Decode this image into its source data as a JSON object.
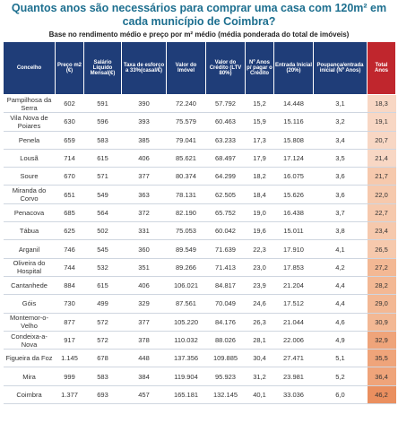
{
  "header": {
    "title": "Quantos anos são necessários para comprar uma casa com 120m² em cada município de Coimbra?",
    "subtitle": "Base no rendimento médio e preço por m² médio (média ponderada do total de imóveis)"
  },
  "table": {
    "columns": [
      "Concelho",
      "Preço m2 (€)",
      "Salário Líquido Mensal(€)",
      "Taxa de esforço a 33%(casal/€)",
      "Valor do Imóvel",
      "Valor do Crédito (LTV 80%)",
      "Nº Anos p/ pagar o Crédito",
      "Entrada Inicial (20%)",
      "Poupança/entrada inicial (Nº Anos)",
      "Total Anos"
    ],
    "rows": [
      [
        "Pampilhosa da Serra",
        "602",
        "591",
        "390",
        "72.240",
        "57.792",
        "15,2",
        "14.448",
        "3,1",
        "18,3"
      ],
      [
        "Vila Nova de Poiares",
        "630",
        "596",
        "393",
        "75.579",
        "60.463",
        "15,9",
        "15.116",
        "3,2",
        "19,1"
      ],
      [
        "Penela",
        "659",
        "583",
        "385",
        "79.041",
        "63.233",
        "17,3",
        "15.808",
        "3,4",
        "20,7"
      ],
      [
        "Lousã",
        "714",
        "615",
        "406",
        "85.621",
        "68.497",
        "17,9",
        "17.124",
        "3,5",
        "21,4"
      ],
      [
        "Soure",
        "670",
        "571",
        "377",
        "80.374",
        "64.299",
        "18,2",
        "16.075",
        "3,6",
        "21,7"
      ],
      [
        "Miranda do Corvo",
        "651",
        "549",
        "363",
        "78.131",
        "62.505",
        "18,4",
        "15.626",
        "3,6",
        "22,0"
      ],
      [
        "Penacova",
        "685",
        "564",
        "372",
        "82.190",
        "65.752",
        "19,0",
        "16.438",
        "3,7",
        "22,7"
      ],
      [
        "Tábua",
        "625",
        "502",
        "331",
        "75.053",
        "60.042",
        "19,6",
        "15.011",
        "3,8",
        "23,4"
      ],
      [
        "Arganil",
        "746",
        "545",
        "360",
        "89.549",
        "71.639",
        "22,3",
        "17.910",
        "4,1",
        "26,5"
      ],
      [
        "Oliveira do Hospital",
        "744",
        "532",
        "351",
        "89.266",
        "71.413",
        "23,0",
        "17.853",
        "4,2",
        "27,2"
      ],
      [
        "Cantanhede",
        "884",
        "615",
        "406",
        "106.021",
        "84.817",
        "23,9",
        "21.204",
        "4,4",
        "28,2"
      ],
      [
        "Góis",
        "730",
        "499",
        "329",
        "87.561",
        "70.049",
        "24,6",
        "17.512",
        "4,4",
        "29,0"
      ],
      [
        "Montemor-o-Velho",
        "877",
        "572",
        "377",
        "105.220",
        "84.176",
        "26,3",
        "21.044",
        "4,6",
        "30,9"
      ],
      [
        "Condeixa-a-Nova",
        "917",
        "572",
        "378",
        "110.032",
        "88.026",
        "28,1",
        "22.006",
        "4,9",
        "32,9"
      ],
      [
        "Figueira da Foz",
        "1.145",
        "678",
        "448",
        "137.356",
        "109.885",
        "30,4",
        "27.471",
        "5,1",
        "35,5"
      ],
      [
        "Mira",
        "999",
        "583",
        "384",
        "119.904",
        "95.923",
        "31,2",
        "23.981",
        "5,2",
        "36,4"
      ],
      [
        "Coimbra",
        "1.377",
        "693",
        "457",
        "165.181",
        "132.145",
        "40,1",
        "33.036",
        "6,0",
        "46,2"
      ]
    ]
  }
}
